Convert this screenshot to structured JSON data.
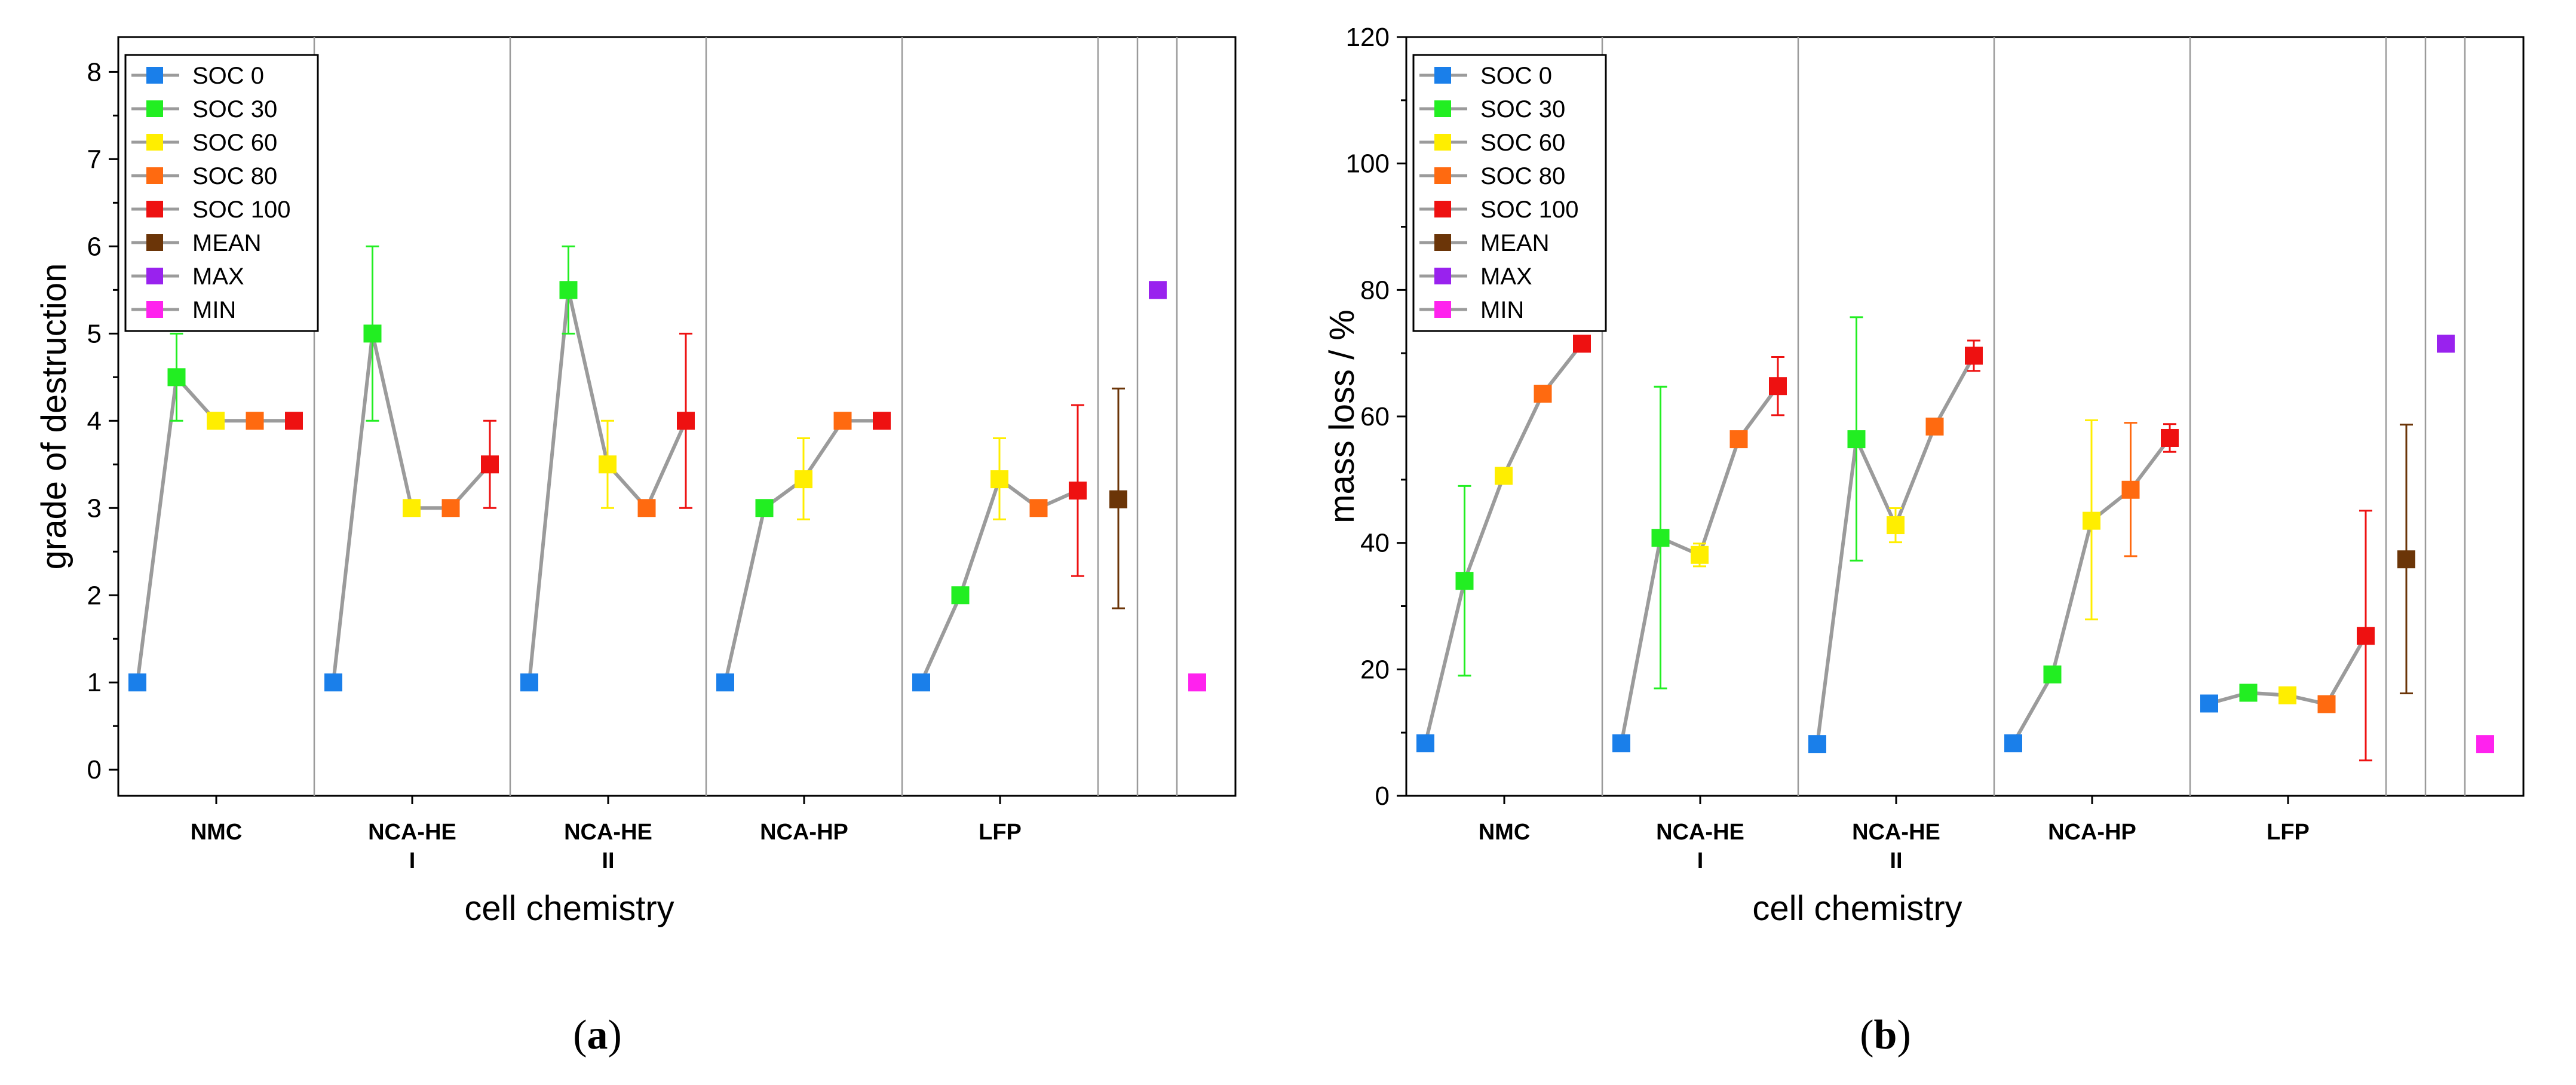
{
  "charts": [
    {
      "chart_data": {
        "type": "line",
        "caption_letter": "a",
        "title": "",
        "xlabel": "cell chemistry",
        "ylabel": "grade of destruction",
        "ylim": [
          -0.3,
          8.4
        ],
        "yticks": [
          "0",
          "1",
          "2",
          "3",
          "4",
          "5",
          "6",
          "7",
          "8"
        ],
        "categories": [
          {
            "name": "NMC",
            "lines": [
              "NMC"
            ]
          },
          {
            "name": "NCA-HE I",
            "lines": [
              "NCA-HE",
              "I"
            ]
          },
          {
            "name": "NCA-HE II",
            "lines": [
              "NCA-HE",
              "II"
            ]
          },
          {
            "name": "NCA-HP",
            "lines": [
              "NCA-HP"
            ]
          },
          {
            "name": "LFP",
            "lines": [
              "LFP"
            ]
          }
        ],
        "legend_position": "top-left",
        "series": [
          {
            "name": "SOC 0",
            "color": "#1a7fea",
            "values": [
              1,
              1,
              1,
              1,
              1
            ],
            "err_low": [
              1,
              1,
              1,
              1,
              1
            ],
            "err_high": [
              1,
              1,
              1,
              1,
              1
            ]
          },
          {
            "name": "SOC 30",
            "color": "#22ee22",
            "values": [
              4.5,
              5,
              5.5,
              3,
              2
            ],
            "err_low": [
              4,
              4,
              5,
              3,
              2
            ],
            "err_high": [
              5,
              6,
              6,
              3,
              2
            ]
          },
          {
            "name": "SOC 60",
            "color": "#ffee00",
            "values": [
              4,
              3,
              3.5,
              3.33,
              3.33
            ],
            "err_low": [
              4,
              3,
              3,
              2.87,
              2.87
            ],
            "err_high": [
              4,
              3,
              4,
              3.8,
              3.8
            ]
          },
          {
            "name": "SOC 80",
            "color": "#ff6a10",
            "values": [
              4,
              3,
              3,
              4,
              3
            ],
            "err_low": [
              4,
              3,
              3,
              4,
              3
            ],
            "err_high": [
              4,
              3,
              3,
              4,
              3
            ]
          },
          {
            "name": "SOC 100",
            "color": "#ee1111",
            "values": [
              4,
              3.5,
              4,
              4,
              3.2
            ],
            "err_low": [
              4,
              3,
              3,
              4,
              2.22
            ],
            "err_high": [
              4,
              4,
              5,
              4,
              4.18
            ]
          }
        ],
        "summary": [
          {
            "name": "MEAN",
            "color": "#6b3508",
            "value": 3.1,
            "err_low": 1.85,
            "err_high": 4.37
          },
          {
            "name": "MAX",
            "color": "#9922ee",
            "value": 5.5
          },
          {
            "name": "MIN",
            "color": "#ff22ee",
            "value": 1
          }
        ]
      }
    },
    {
      "chart_data": {
        "type": "line",
        "caption_letter": "b",
        "title": "",
        "xlabel": "cell chemistry",
        "ylabel": "mass loss / %",
        "ylim": [
          0,
          120
        ],
        "yticks": [
          "0",
          "20",
          "40",
          "60",
          "80",
          "100",
          "120"
        ],
        "categories": [
          {
            "name": "NMC",
            "lines": [
              "NMC"
            ]
          },
          {
            "name": "NCA-HE I",
            "lines": [
              "NCA-HE",
              "I"
            ]
          },
          {
            "name": "NCA-HE II",
            "lines": [
              "NCA-HE",
              "II"
            ]
          },
          {
            "name": "NCA-HP",
            "lines": [
              "NCA-HP"
            ]
          },
          {
            "name": "LFP",
            "lines": [
              "LFP"
            ]
          }
        ],
        "legend_position": "top-left",
        "series": [
          {
            "name": "SOC 0",
            "color": "#1a7fea",
            "values": [
              8.3,
              8.3,
              8.2,
              8.3,
              14.6
            ],
            "err_low": [
              8.3,
              8.3,
              8.2,
              8.3,
              14.6
            ],
            "err_high": [
              8.3,
              8.3,
              8.2,
              8.3,
              14.6
            ]
          },
          {
            "name": "SOC 30",
            "color": "#22ee22",
            "values": [
              34,
              40.8,
              56.4,
              19.2,
              16.3
            ],
            "err_low": [
              19,
              17,
              37.2,
              19.2,
              16.3
            ],
            "err_high": [
              49,
              64.7,
              75.7,
              19.2,
              16.3
            ]
          },
          {
            "name": "SOC 60",
            "color": "#ffee00",
            "values": [
              50.6,
              38.1,
              42.8,
              43.5,
              15.9
            ],
            "err_low": [
              50.6,
              36.3,
              40.1,
              27.9,
              15.9
            ],
            "err_high": [
              50.6,
              39.9,
              45.5,
              59.4,
              15.9
            ]
          },
          {
            "name": "SOC 80",
            "color": "#ff6a10",
            "values": [
              63.6,
              56.4,
              58.4,
              48.4,
              14.5
            ],
            "err_low": [
              63.6,
              56.4,
              58.4,
              37.9,
              14.5
            ],
            "err_high": [
              63.6,
              56.4,
              58.4,
              59,
              14.5
            ]
          },
          {
            "name": "SOC 100",
            "color": "#ee1111",
            "values": [
              71.5,
              64.8,
              69.6,
              56.6,
              25.3
            ],
            "err_low": [
              71.5,
              60.2,
              67.2,
              54.4,
              5.6
            ],
            "err_high": [
              71.5,
              69.4,
              72,
              58.8,
              45.1
            ]
          }
        ],
        "summary": [
          {
            "name": "MEAN",
            "color": "#6b3508",
            "value": 37.4,
            "err_low": 16.2,
            "err_high": 58.7
          },
          {
            "name": "MAX",
            "color": "#9922ee",
            "value": 71.5
          },
          {
            "name": "MIN",
            "color": "#ff22ee",
            "value": 8.2
          }
        ]
      }
    }
  ]
}
